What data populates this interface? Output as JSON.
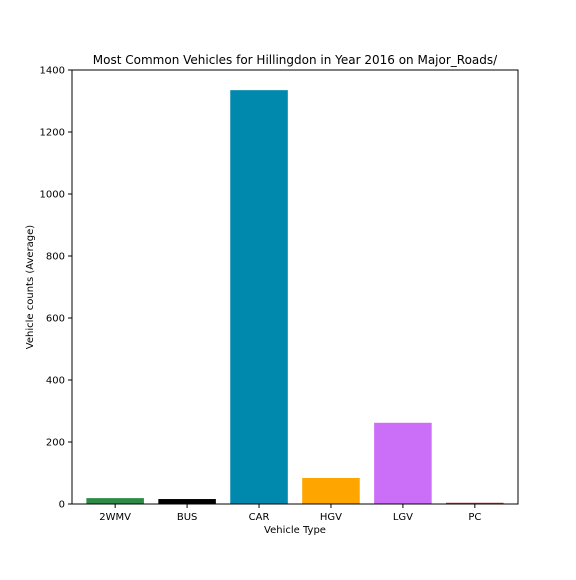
{
  "chart_data": {
    "type": "bar",
    "title": "Most Common Vehicles for Hillingdon in Year 2016 on Major_Roads/",
    "xlabel": "Vehicle Type",
    "ylabel": "Vehicle counts (Average)",
    "categories": [
      "2WMV",
      "BUS",
      "CAR",
      "HGV",
      "LGV",
      "PC"
    ],
    "values": [
      19,
      16,
      1335,
      84,
      262,
      4
    ],
    "colors": [
      "#2e8b46",
      "#000000",
      "#0088ad",
      "#ffa500",
      "#cc6ff8",
      "#c0392b"
    ],
    "ylim": [
      0,
      1400
    ],
    "yticks": [
      0,
      200,
      400,
      600,
      800,
      1000,
      1200,
      1400
    ],
    "grid": false,
    "legend": "none"
  }
}
